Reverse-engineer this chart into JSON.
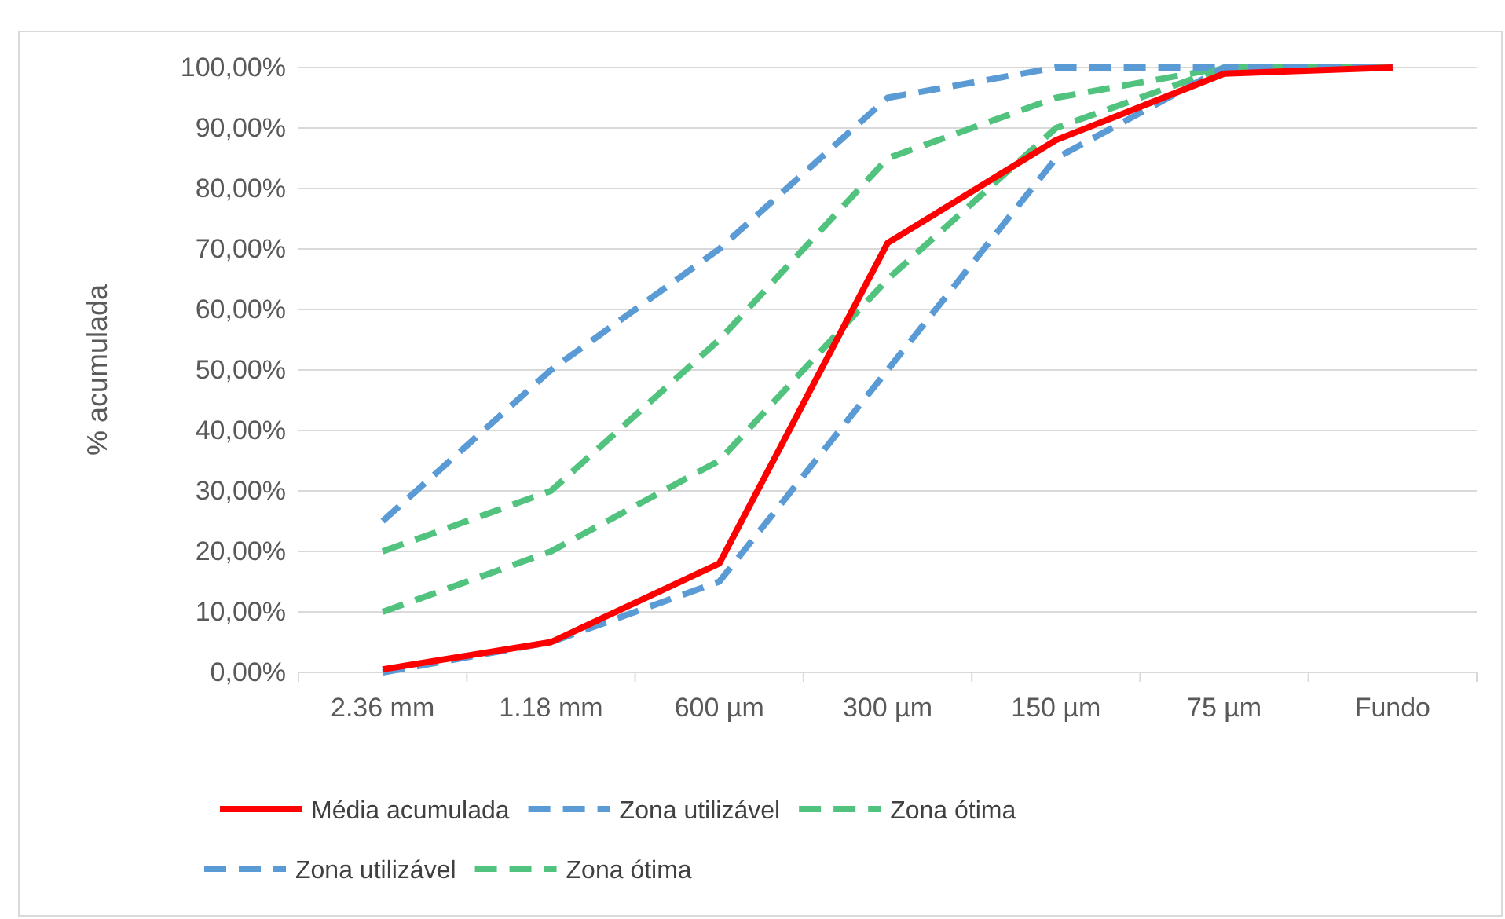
{
  "chart_data": {
    "type": "line",
    "ylabel": "% acumulada",
    "categories": [
      "2.36 mm",
      "1.18 mm",
      "600 µm",
      "300 µm",
      "150 µm",
      "75 µm",
      "Fundo"
    ],
    "series": [
      {
        "name": "Média acumulada",
        "color": "#ff0000",
        "line_style": "solid",
        "values": [
          0.5,
          5,
          18,
          71,
          88,
          99,
          100
        ]
      },
      {
        "name": "Zona utilizável",
        "color": "#5b9bd5",
        "line_style": "dashed",
        "values": [
          0,
          5,
          15,
          50,
          85,
          100,
          100
        ]
      },
      {
        "name": "Zona ótima",
        "color": "#52c37f",
        "line_style": "dashed",
        "values": [
          10,
          20,
          35,
          65,
          90,
          100,
          100
        ]
      },
      {
        "name": "Zona utilizável",
        "color": "#5b9bd5",
        "line_style": "dashed",
        "values": [
          25,
          50,
          70,
          95,
          100,
          100,
          100
        ]
      },
      {
        "name": "Zona ótima",
        "color": "#52c37f",
        "line_style": "dashed",
        "values": [
          20,
          30,
          55,
          85,
          95,
          100,
          100
        ]
      }
    ],
    "ylim": [
      0,
      100
    ],
    "yticks": [
      {
        "value": 0,
        "label": "0,00%"
      },
      {
        "value": 10,
        "label": "10,00%"
      },
      {
        "value": 20,
        "label": "20,00%"
      },
      {
        "value": 30,
        "label": "30,00%"
      },
      {
        "value": 40,
        "label": "40,00%"
      },
      {
        "value": 50,
        "label": "50,00%"
      },
      {
        "value": 60,
        "label": "60,00%"
      },
      {
        "value": 70,
        "label": "70,00%"
      },
      {
        "value": 80,
        "label": "80,00%"
      },
      {
        "value": 90,
        "label": "90,00%"
      },
      {
        "value": 100,
        "label": "100,00%"
      }
    ],
    "grid": "y",
    "legend": "bottom",
    "marker": "none"
  }
}
